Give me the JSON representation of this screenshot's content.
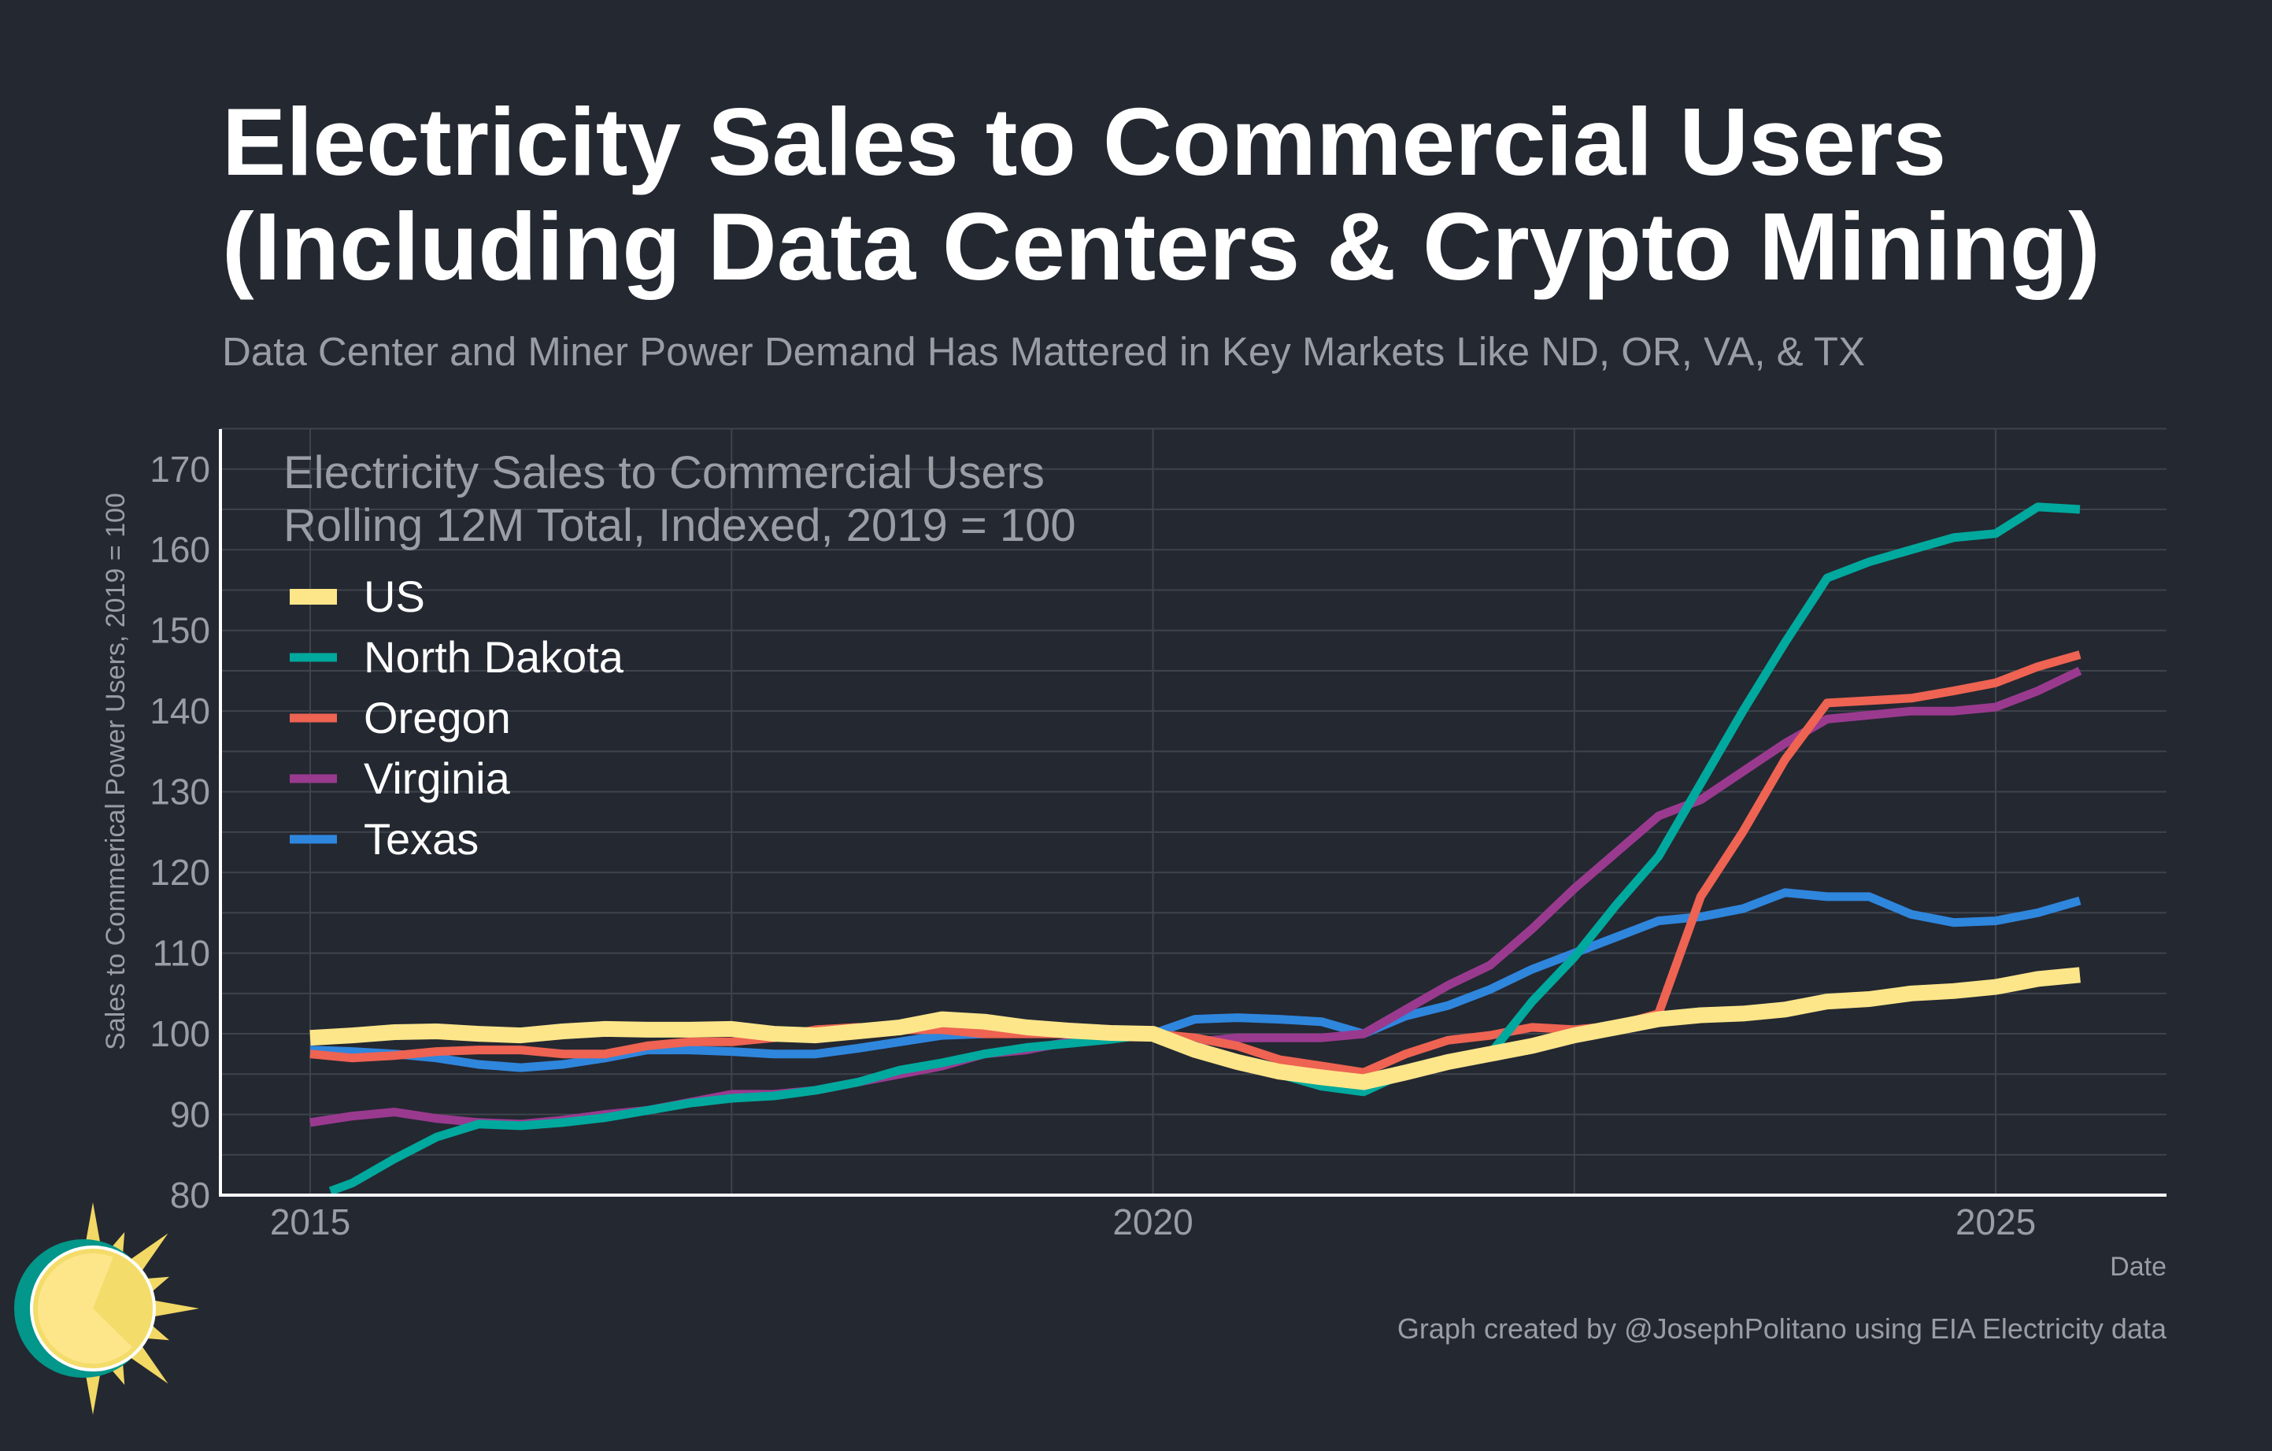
{
  "header": {
    "title_line1": "Electricity Sales to Commercial Users",
    "title_line2": "(Including Data Centers & Crypto Mining)",
    "subtitle": "Data Center and Miner Power Demand Has Mattered in Key Markets Like ND, OR, VA, & TX"
  },
  "footer": {
    "credit": "Graph created by @JosephPolitano using EIA Electricity data"
  },
  "colors": {
    "background": "#242831",
    "US": "#fde68a",
    "North Dakota": "#00a99d",
    "Oregon": "#ee6352",
    "Virginia": "#9a3a8f",
    "Texas": "#2f86dd"
  },
  "chart_data": {
    "type": "line",
    "title": "Electricity Sales to Commercial Users",
    "subtitle": "Rolling 12M Total, Indexed, 2019 = 100",
    "xlabel": "Date",
    "ylabel": "Sales to Commerical Power Users, 2019 = 100",
    "xlim": [
      2014.5,
      2026.3
    ],
    "ylim": [
      80,
      175
    ],
    "xticks": [
      2015,
      2020,
      2025
    ],
    "xtick_labels": [
      "2015",
      "2020",
      "2025"
    ],
    "yticks": [
      80,
      90,
      100,
      110,
      120,
      130,
      140,
      150,
      160,
      170
    ],
    "ytick_labels": [
      "80",
      "90",
      "100",
      "110",
      "120",
      "130",
      "140",
      "150",
      "160",
      "170"
    ],
    "grid": true,
    "legend_position": "top-left",
    "x": [
      2015,
      2015.25,
      2015.5,
      2015.75,
      2016,
      2016.25,
      2016.5,
      2016.75,
      2017,
      2017.25,
      2017.5,
      2017.75,
      2018,
      2018.25,
      2018.5,
      2018.75,
      2019,
      2019.25,
      2019.5,
      2019.75,
      2020,
      2020.25,
      2020.5,
      2020.75,
      2021,
      2021.25,
      2021.5,
      2021.75,
      2022,
      2022.25,
      2022.5,
      2022.75,
      2023,
      2023.25,
      2023.5,
      2023.75,
      2024,
      2024.25,
      2024.5,
      2024.75,
      2025,
      2025.25,
      2025.5
    ],
    "series": [
      {
        "name": "US",
        "values": [
          99.5,
          99.8,
          100.2,
          100.3,
          100.0,
          99.8,
          100.3,
          100.6,
          100.5,
          100.5,
          100.6,
          100.0,
          99.8,
          100.3,
          100.8,
          101.8,
          101.5,
          100.8,
          100.4,
          100.1,
          100.0,
          98.0,
          96.5,
          95.3,
          94.6,
          94.0,
          95.2,
          96.5,
          97.5,
          98.5,
          99.8,
          100.8,
          101.8,
          102.3,
          102.5,
          103.0,
          104.0,
          104.3,
          105.0,
          105.3,
          105.8,
          106.8,
          107.3
        ]
      },
      {
        "name": "North Dakota",
        "values": [
          null,
          81.5,
          84.5,
          87.2,
          88.8,
          88.6,
          89.0,
          89.6,
          90.5,
          91.4,
          92.0,
          92.3,
          93.0,
          94.0,
          95.5,
          96.4,
          97.5,
          98.3,
          98.8,
          99.3,
          100.0,
          98.5,
          96.5,
          95.0,
          93.5,
          92.8,
          95.2,
          96.2,
          97.5,
          104.0,
          109.5,
          116.0,
          122.0,
          131.0,
          140.0,
          148.5,
          156.5,
          158.5,
          160.0,
          161.5,
          162.0,
          165.3,
          165.0
        ]
      },
      {
        "name": "Oregon",
        "values": [
          97.5,
          97.0,
          97.3,
          97.8,
          98.0,
          98.0,
          97.5,
          97.5,
          98.5,
          99.0,
          99.0,
          99.5,
          100.5,
          100.8,
          100.5,
          100.5,
          100.0,
          100.0,
          100.0,
          99.8,
          100.0,
          99.5,
          98.5,
          96.8,
          96.0,
          95.2,
          97.5,
          99.2,
          99.8,
          100.8,
          100.5,
          101.0,
          102.5,
          117.0,
          125.0,
          134.0,
          141.0,
          141.3,
          141.6,
          142.5,
          143.5,
          145.5,
          147.0
        ]
      },
      {
        "name": "Virginia",
        "values": [
          89.0,
          89.8,
          90.3,
          89.5,
          89.0,
          88.8,
          89.3,
          90.0,
          90.5,
          91.5,
          92.5,
          92.5,
          93.0,
          94.0,
          95.0,
          96.0,
          97.5,
          98.0,
          99.0,
          99.5,
          100.0,
          99.0,
          99.5,
          99.5,
          99.5,
          100.0,
          103.0,
          106.0,
          108.5,
          113.0,
          118.0,
          122.5,
          127.0,
          129.0,
          132.5,
          136.0,
          139.0,
          139.5,
          140.0,
          140.0,
          140.5,
          142.5,
          145.0
        ]
      },
      {
        "name": "Texas",
        "values": [
          98.0,
          97.8,
          97.5,
          97.0,
          96.2,
          95.8,
          96.2,
          97.0,
          98.0,
          98.0,
          97.8,
          97.5,
          97.5,
          98.2,
          99.0,
          99.8,
          100.0,
          100.2,
          100.0,
          100.0,
          100.0,
          101.8,
          102.0,
          101.8,
          101.5,
          100.0,
          102.2,
          103.5,
          105.5,
          108.0,
          110.0,
          112.0,
          114.0,
          114.5,
          115.5,
          117.5,
          117.0,
          117.0,
          114.8,
          113.8,
          114.0,
          115.0,
          116.5
        ]
      }
    ]
  }
}
